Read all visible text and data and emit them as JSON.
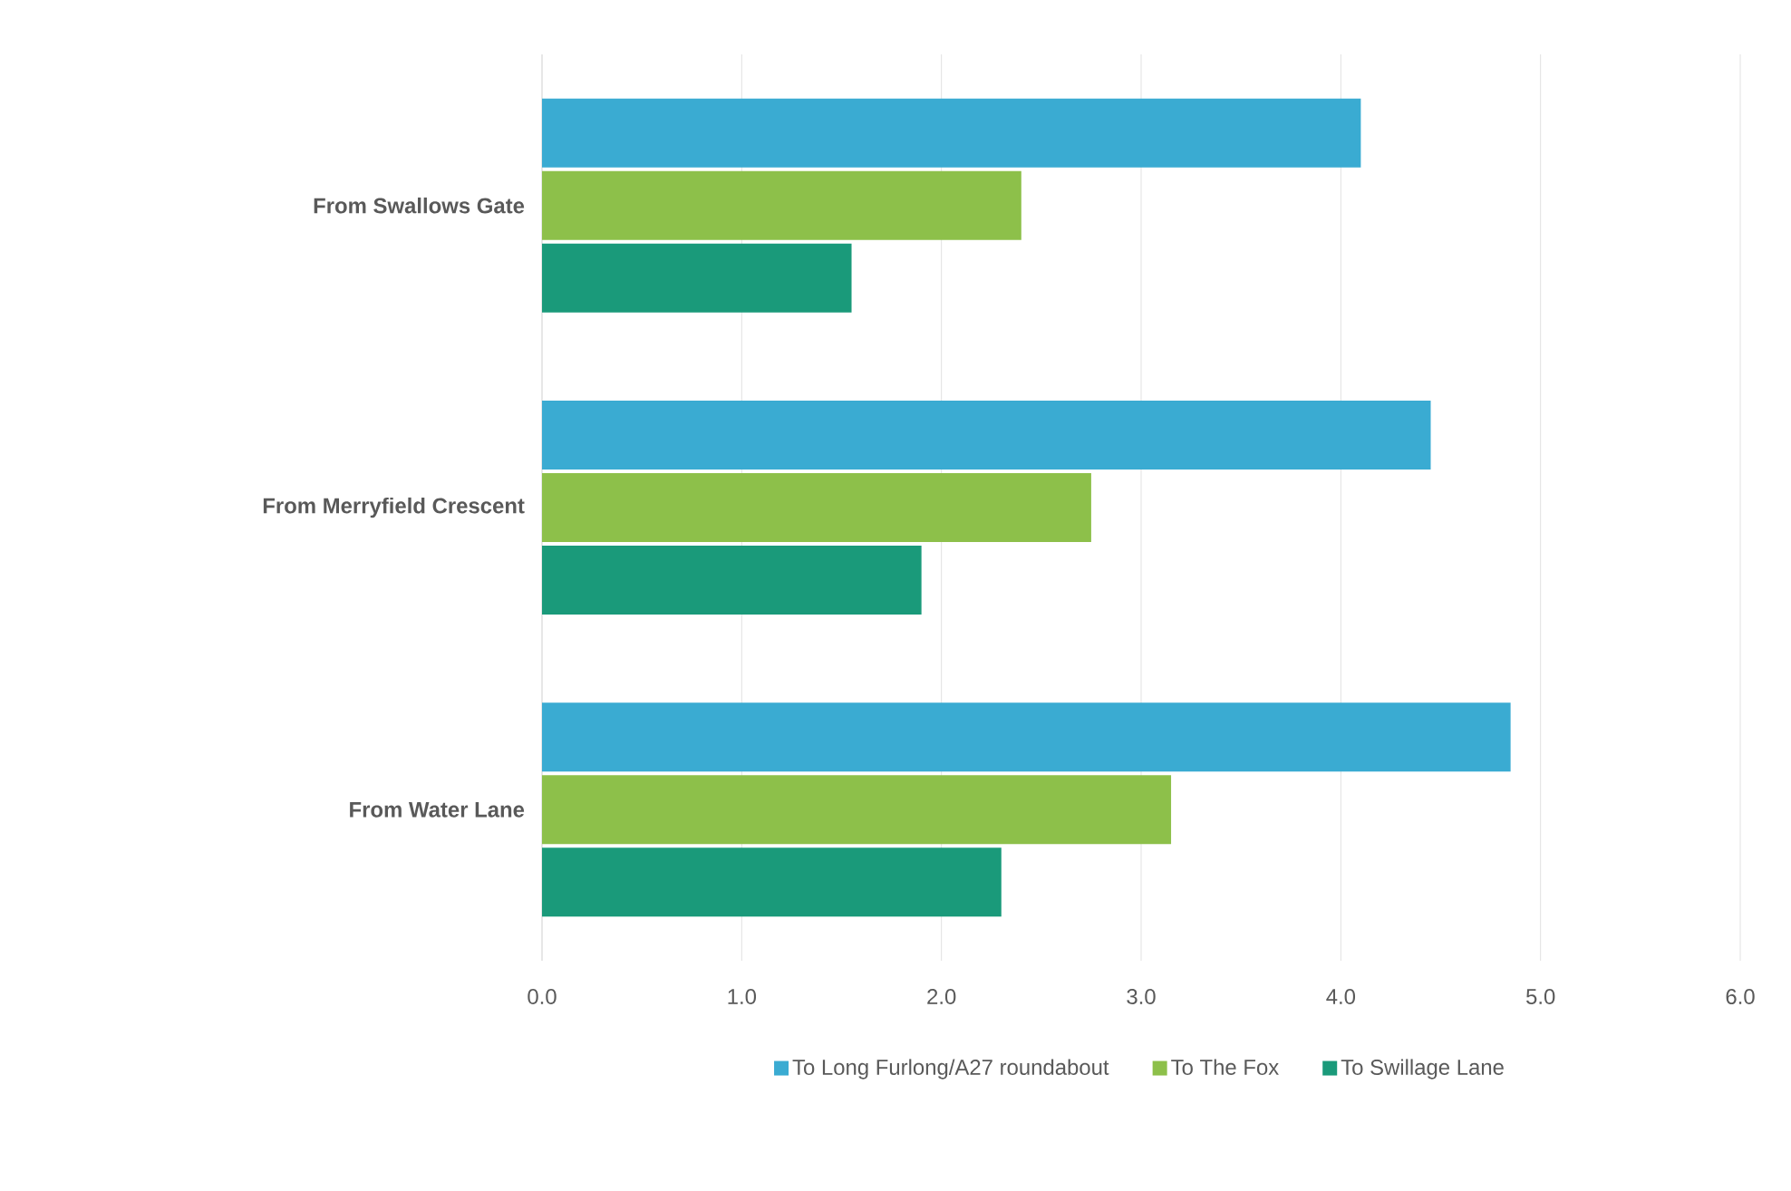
{
  "chart_data": {
    "type": "bar",
    "orientation": "horizontal",
    "categories": [
      "From Swallows Gate",
      "From Merryfield Crescent",
      "From Water Lane"
    ],
    "series": [
      {
        "name": "To Long Furlong/A27 roundabout",
        "color": "#3aabd2",
        "values": [
          4.1,
          4.45,
          4.85
        ]
      },
      {
        "name": "To The Fox",
        "color": "#8dc04a",
        "values": [
          2.4,
          2.75,
          3.15
        ]
      },
      {
        "name": "To Swillage Lane",
        "color": "#1a9a7a",
        "values": [
          1.55,
          1.9,
          2.3
        ]
      }
    ],
    "xlim": [
      0,
      6
    ],
    "xticks": [
      {
        "value": 0,
        "label": "0.0"
      },
      {
        "value": 1,
        "label": "1.0"
      },
      {
        "value": 2,
        "label": "2.0"
      },
      {
        "value": 3,
        "label": "3.0"
      },
      {
        "value": 4,
        "label": "4.0"
      },
      {
        "value": 5,
        "label": "5.0"
      },
      {
        "value": 6,
        "label": "6.0"
      }
    ],
    "grid": "x",
    "legend": "bottom"
  }
}
